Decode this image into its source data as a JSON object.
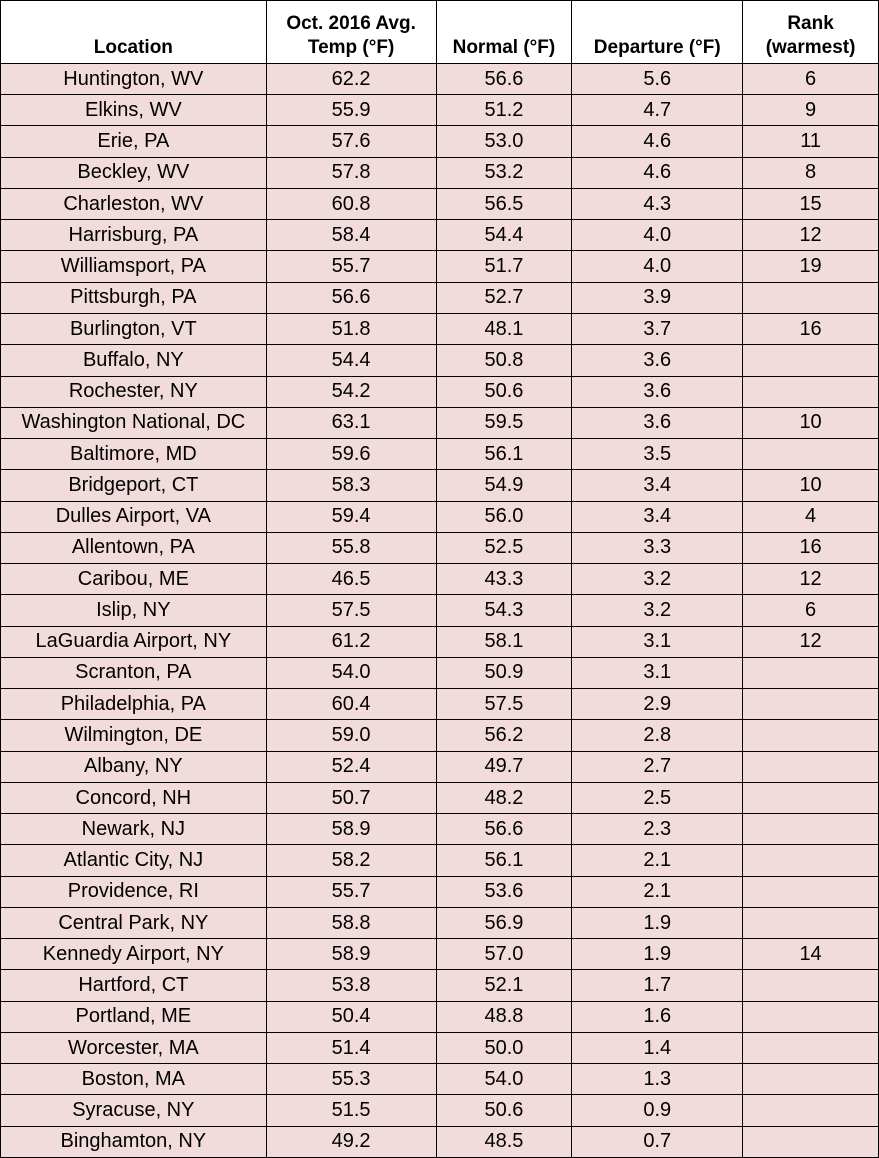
{
  "table": {
    "header": [
      "Location",
      [
        "Oct. 2016 Avg.",
        "Temp (°F)"
      ],
      "Normal (°F)",
      "Departure (°F)",
      [
        "Rank",
        "(warmest)"
      ]
    ],
    "rows": [
      [
        "Huntington, WV",
        "62.2",
        "56.6",
        "5.6",
        "6"
      ],
      [
        "Elkins, WV",
        "55.9",
        "51.2",
        "4.7",
        "9"
      ],
      [
        "Erie, PA",
        "57.6",
        "53.0",
        "4.6",
        "11"
      ],
      [
        "Beckley, WV",
        "57.8",
        "53.2",
        "4.6",
        "8"
      ],
      [
        "Charleston, WV",
        "60.8",
        "56.5",
        "4.3",
        "15"
      ],
      [
        "Harrisburg, PA",
        "58.4",
        "54.4",
        "4.0",
        "12"
      ],
      [
        "Williamsport, PA",
        "55.7",
        "51.7",
        "4.0",
        "19"
      ],
      [
        "Pittsburgh, PA",
        "56.6",
        "52.7",
        "3.9",
        null
      ],
      [
        "Burlington, VT",
        "51.8",
        "48.1",
        "3.7",
        "16"
      ],
      [
        "Buffalo, NY",
        "54.4",
        "50.8",
        "3.6",
        null
      ],
      [
        "Rochester, NY",
        "54.2",
        "50.6",
        "3.6",
        null
      ],
      [
        "Washington National, DC",
        "63.1",
        "59.5",
        "3.6",
        "10"
      ],
      [
        "Baltimore, MD",
        "59.6",
        "56.1",
        "3.5",
        null
      ],
      [
        "Bridgeport, CT",
        "58.3",
        "54.9",
        "3.4",
        "10"
      ],
      [
        "Dulles Airport, VA",
        "59.4",
        "56.0",
        "3.4",
        "4"
      ],
      [
        "Allentown, PA",
        "55.8",
        "52.5",
        "3.3",
        "16"
      ],
      [
        "Caribou, ME",
        "46.5",
        "43.3",
        "3.2",
        "12"
      ],
      [
        "Islip, NY",
        "57.5",
        "54.3",
        "3.2",
        "6"
      ],
      [
        "LaGuardia Airport, NY",
        "61.2",
        "58.1",
        "3.1",
        "12"
      ],
      [
        "Scranton, PA",
        "54.0",
        "50.9",
        "3.1",
        null
      ],
      [
        "Philadelphia, PA",
        "60.4",
        "57.5",
        "2.9",
        null
      ],
      [
        "Wilmington, DE",
        "59.0",
        "56.2",
        "2.8",
        null
      ],
      [
        "Albany, NY",
        "52.4",
        "49.7",
        "2.7",
        null
      ],
      [
        "Concord, NH",
        "50.7",
        "48.2",
        "2.5",
        null
      ],
      [
        "Newark, NJ",
        "58.9",
        "56.6",
        "2.3",
        null
      ],
      [
        "Atlantic City, NJ",
        "58.2",
        "56.1",
        "2.1",
        null
      ],
      [
        "Providence, RI",
        "55.7",
        "53.6",
        "2.1",
        null
      ],
      [
        "Central Park, NY",
        "58.8",
        "56.9",
        "1.9",
        null
      ],
      [
        "Kennedy Airport, NY",
        "58.9",
        "57.0",
        "1.9",
        "14"
      ],
      [
        "Hartford, CT",
        "53.8",
        "52.1",
        "1.7",
        null
      ],
      [
        "Portland, ME",
        "50.4",
        "48.8",
        "1.6",
        null
      ],
      [
        "Worcester, MA",
        "51.4",
        "50.0",
        "1.4",
        null
      ],
      [
        "Boston, MA",
        "55.3",
        "54.0",
        "1.3",
        null
      ],
      [
        "Syracuse, NY",
        "51.5",
        "50.6",
        "0.9",
        null
      ],
      [
        "Binghamton, NY",
        "49.2",
        "48.5",
        "0.7",
        null
      ]
    ]
  }
}
